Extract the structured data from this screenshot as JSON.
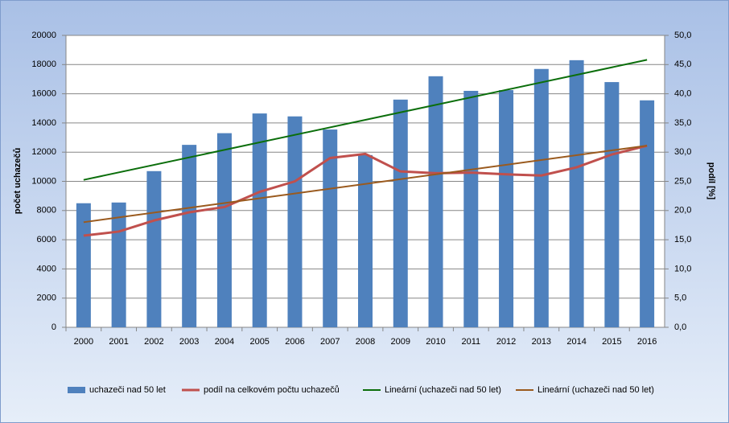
{
  "chart_data": {
    "type": "bar",
    "y_label": "počet uchazečů",
    "y2_label": "podíl [%]",
    "categories": [
      "2000",
      "2001",
      "2002",
      "2003",
      "2004",
      "2005",
      "2006",
      "2007",
      "2008",
      "2009",
      "2010",
      "2011",
      "2012",
      "2013",
      "2014",
      "2015",
      "2016"
    ],
    "series": [
      {
        "name": "uchazeči nad 50 let",
        "type": "bar",
        "color": "#4f81bd",
        "values": [
          8500,
          8550,
          10700,
          12500,
          13300,
          14650,
          14450,
          13550,
          11800,
          15600,
          17200,
          16200,
          16250,
          17700,
          18300,
          16800,
          15550
        ]
      },
      {
        "name": "podíl na celkovém počtu uchazečů",
        "type": "line",
        "axis": "y2",
        "color": "#c0504d",
        "values": [
          15.7,
          16.4,
          18.3,
          19.7,
          20.6,
          23.2,
          25.0,
          29.0,
          29.7,
          26.7,
          26.4,
          26.5,
          26.2,
          26.0,
          27.4,
          29.6,
          31.1
        ]
      },
      {
        "name": "Lineární (uchazeči nad 50 let)",
        "type": "trendline",
        "color": "#0b6e0b"
      },
      {
        "name": "Lineární (uchazeči nad 50 let)",
        "type": "trendline",
        "axis": "y2",
        "color": "#9a5a1e"
      }
    ],
    "ylim": [
      0,
      20000
    ],
    "yticks": [
      0,
      2000,
      4000,
      6000,
      8000,
      10000,
      12000,
      14000,
      16000,
      18000,
      20000
    ],
    "y2lim": [
      0,
      50
    ],
    "y2ticks": [
      {
        "value": 0,
        "label": "0,0"
      },
      {
        "value": 5,
        "label": "5,0"
      },
      {
        "value": 10,
        "label": "10,0"
      },
      {
        "value": 15,
        "label": "15,0"
      },
      {
        "value": 20,
        "label": "20,0"
      },
      {
        "value": 25,
        "label": "25,0"
      },
      {
        "value": 30,
        "label": "30,0"
      },
      {
        "value": 35,
        "label": "35,0"
      },
      {
        "value": 40,
        "label": "40,0"
      },
      {
        "value": 45,
        "label": "45,0"
      },
      {
        "value": 50,
        "label": "50,0"
      }
    ],
    "grid": true,
    "legend": "bottom"
  }
}
